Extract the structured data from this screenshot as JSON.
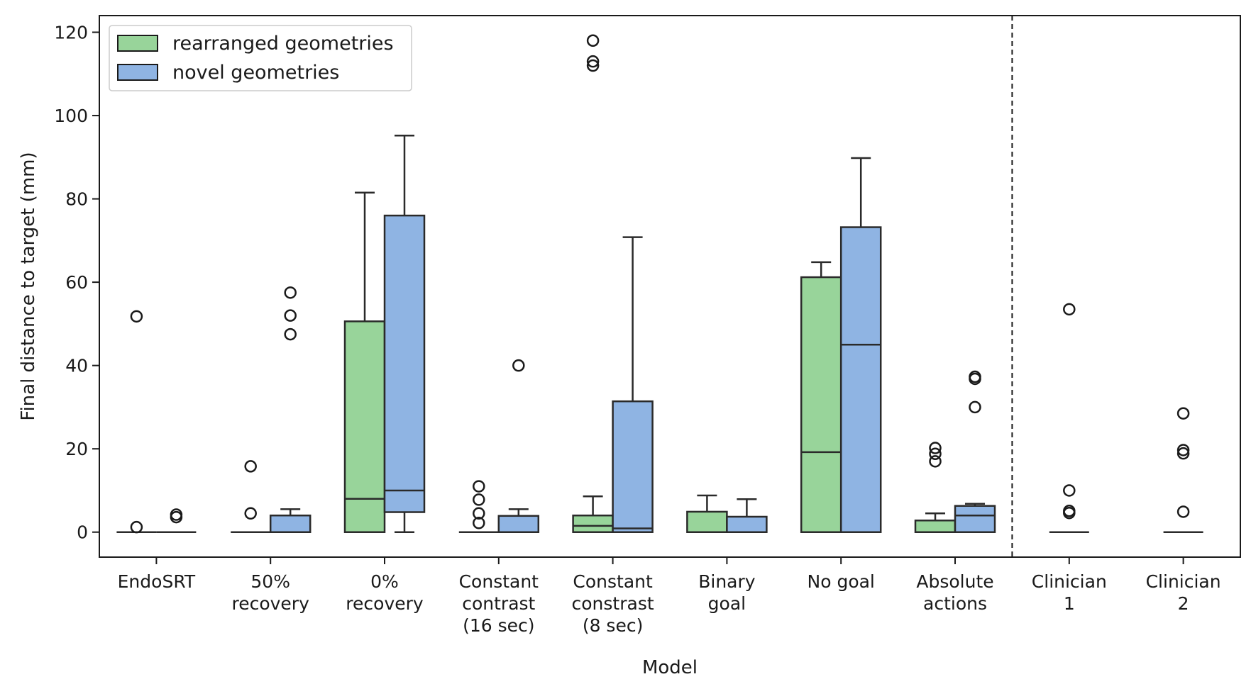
{
  "chart_data": {
    "type": "box",
    "title": "",
    "xlabel": "Model",
    "ylabel": "Final distance to target (mm)",
    "ylim": [
      -6,
      124
    ],
    "yticks": [
      0,
      20,
      40,
      60,
      80,
      100,
      120
    ],
    "grid": false,
    "legend": {
      "placement": "top-left"
    },
    "series_order": [
      "rearranged geometries",
      "novel geometries"
    ],
    "series_colors": {
      "rearranged geometries": "#98d49a",
      "novel geometries": "#8fb4e3"
    },
    "divider_after_index": 7,
    "categories": [
      {
        "label": [
          "EndoSRT"
        ],
        "boxes": [
          {
            "series": "rearranged geometries",
            "q1": 0,
            "median": 0,
            "q3": 0,
            "whisker_low": 0,
            "whisker_high": 0,
            "outliers": [
              1.2,
              51.8
            ]
          },
          {
            "series": "novel geometries",
            "q1": 0,
            "median": 0,
            "q3": 0,
            "whisker_low": 0,
            "whisker_high": 0,
            "outliers": [
              3.6,
              4.2
            ]
          }
        ]
      },
      {
        "label": [
          "50%",
          "recovery"
        ],
        "boxes": [
          {
            "series": "rearranged geometries",
            "q1": 0,
            "median": 0,
            "q3": 0,
            "whisker_low": 0,
            "whisker_high": 0,
            "outliers": [
              4.5,
              15.8
            ]
          },
          {
            "series": "novel geometries",
            "q1": 0,
            "median": 0,
            "q3": 4,
            "whisker_low": 0,
            "whisker_high": 5.5,
            "outliers": [
              47.5,
              52,
              57.5
            ]
          }
        ]
      },
      {
        "label": [
          "0%",
          "recovery"
        ],
        "boxes": [
          {
            "series": "rearranged geometries",
            "q1": 0,
            "median": 8,
            "q3": 50.6,
            "whisker_low": 0,
            "whisker_high": 81.5,
            "outliers": []
          },
          {
            "series": "novel geometries",
            "q1": 4.8,
            "median": 10,
            "q3": 76,
            "whisker_low": 0,
            "whisker_high": 95.2,
            "outliers": []
          }
        ]
      },
      {
        "label": [
          "Constant",
          "contrast",
          "(16 sec)"
        ],
        "boxes": [
          {
            "series": "rearranged geometries",
            "q1": 0,
            "median": 0,
            "q3": 0,
            "whisker_low": 0,
            "whisker_high": 0,
            "outliers": [
              2.2,
              4.5,
              7.8,
              11
            ]
          },
          {
            "series": "novel geometries",
            "q1": 0,
            "median": 0,
            "q3": 3.9,
            "whisker_low": 0,
            "whisker_high": 5.5,
            "outliers": [
              40
            ]
          }
        ]
      },
      {
        "label": [
          "Constant",
          "constrast",
          "(8 sec)"
        ],
        "boxes": [
          {
            "series": "rearranged geometries",
            "q1": 0,
            "median": 1.5,
            "q3": 4,
            "whisker_low": 0,
            "whisker_high": 8.6,
            "outliers": [
              112,
              113,
              118
            ]
          },
          {
            "series": "novel geometries",
            "q1": 0,
            "median": 0.9,
            "q3": 31.4,
            "whisker_low": 0,
            "whisker_high": 70.8,
            "outliers": []
          }
        ]
      },
      {
        "label": [
          "Binary",
          "goal"
        ],
        "boxes": [
          {
            "series": "rearranged geometries",
            "q1": 0,
            "median": 0,
            "q3": 4.9,
            "whisker_low": 0,
            "whisker_high": 8.8,
            "outliers": []
          },
          {
            "series": "novel geometries",
            "q1": 0,
            "median": 0,
            "q3": 3.7,
            "whisker_low": 0,
            "whisker_high": 7.9,
            "outliers": []
          }
        ]
      },
      {
        "label": [
          "No goal"
        ],
        "boxes": [
          {
            "series": "rearranged geometries",
            "q1": 0,
            "median": 19.2,
            "q3": 61.2,
            "whisker_low": 0,
            "whisker_high": 64.8,
            "outliers": []
          },
          {
            "series": "novel geometries",
            "q1": 0,
            "median": 45,
            "q3": 73.2,
            "whisker_low": 0,
            "whisker_high": 89.8,
            "outliers": []
          }
        ]
      },
      {
        "label": [
          "Absolute",
          "actions"
        ],
        "boxes": [
          {
            "series": "rearranged geometries",
            "q1": 0,
            "median": 0,
            "q3": 2.8,
            "whisker_low": 0,
            "whisker_high": 4.5,
            "outliers": [
              17,
              18.8,
              20.2
            ]
          },
          {
            "series": "novel geometries",
            "q1": 0,
            "median": 4,
            "q3": 6.3,
            "whisker_low": 0,
            "whisker_high": 6.8,
            "outliers": [
              30,
              36.8,
              37.3
            ]
          }
        ]
      },
      {
        "label": [
          "Clinician",
          "1"
        ],
        "boxes": [
          {
            "series": "single",
            "q1": 0,
            "median": 0,
            "q3": 0,
            "whisker_low": 0,
            "whisker_high": 0,
            "outliers": [
              4.6,
              5.1,
              10,
              53.5
            ]
          }
        ]
      },
      {
        "label": [
          "Clinician",
          "2"
        ],
        "boxes": [
          {
            "series": "single",
            "q1": 0,
            "median": 0,
            "q3": 0,
            "whisker_low": 0,
            "whisker_high": 0,
            "outliers": [
              4.9,
              18.9,
              19.7,
              28.5
            ]
          }
        ]
      }
    ]
  }
}
